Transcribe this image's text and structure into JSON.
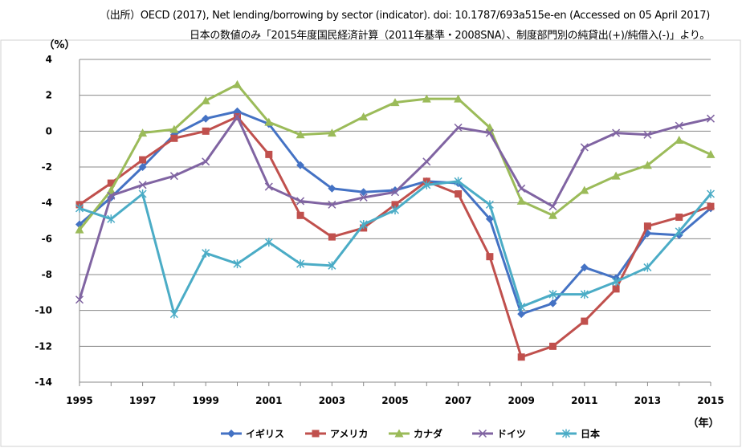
{
  "source_line1": "（出所）OECD (2017), Net lending/borrowing by sector (indicator). doi: 10.1787/693a515e-en (Accessed on 05 April 2017)",
  "source_line2": "日本の数値のみ「2015年度国民経済計算（2011年基準・2008SNA）、制度部門別の純貸出(+)/純借入(-)」より。",
  "chart_data": {
    "type": "line",
    "ylabel": "（%）",
    "xlabel": "（年）",
    "ylim": [
      -14,
      4
    ],
    "yticks": [
      4,
      2,
      0,
      -2,
      -4,
      -6,
      -8,
      -10,
      -12,
      -14
    ],
    "xlim": [
      1995,
      2015
    ],
    "xticks": [
      1995,
      1997,
      1999,
      2001,
      2003,
      2005,
      2007,
      2009,
      2011,
      2013,
      2015
    ],
    "grid": true,
    "legend_position": "bottom",
    "x": [
      1995,
      1996,
      1997,
      1998,
      1999,
      2000,
      2001,
      2002,
      2003,
      2004,
      2005,
      2006,
      2007,
      2008,
      2009,
      2010,
      2011,
      2012,
      2013,
      2014,
      2015
    ],
    "series": [
      {
        "name": "イギリス",
        "color": "#4472c4",
        "marker": "diamond",
        "values": [
          -5.2,
          -3.7,
          -2.0,
          -0.2,
          0.7,
          1.1,
          0.4,
          -1.9,
          -3.2,
          -3.4,
          -3.3,
          -2.8,
          -2.9,
          -4.9,
          -10.2,
          -9.6,
          -7.6,
          -8.2,
          -5.7,
          -5.8,
          -4.3
        ]
      },
      {
        "name": "アメリカ",
        "color": "#c0504d",
        "marker": "square",
        "values": [
          -4.1,
          -2.9,
          -1.6,
          -0.4,
          0.0,
          0.8,
          -1.3,
          -4.7,
          -5.9,
          -5.4,
          -4.1,
          -2.8,
          -3.5,
          -7.0,
          -12.6,
          -12.0,
          -10.6,
          -8.8,
          -5.3,
          -4.8,
          -4.2
        ]
      },
      {
        "name": "カナダ",
        "color": "#9bbb59",
        "marker": "triangle",
        "values": [
          -5.5,
          -3.3,
          -0.1,
          0.1,
          1.7,
          2.6,
          0.5,
          -0.2,
          -0.1,
          0.8,
          1.6,
          1.8,
          1.8,
          0.2,
          -3.9,
          -4.7,
          -3.3,
          -2.5,
          -1.9,
          -0.5,
          -1.3
        ]
      },
      {
        "name": "ドイツ",
        "color": "#8064a2",
        "marker": "x",
        "values": [
          -9.4,
          -3.6,
          -3.0,
          -2.5,
          -1.7,
          0.8,
          -3.1,
          -3.9,
          -4.1,
          -3.7,
          -3.4,
          -1.7,
          0.2,
          -0.1,
          -3.2,
          -4.2,
          -0.9,
          -0.1,
          -0.2,
          0.3,
          0.7
        ]
      },
      {
        "name": "日本",
        "color": "#4bacc6",
        "marker": "asterisk",
        "values": [
          -4.3,
          -4.9,
          -3.5,
          -10.2,
          -6.8,
          -7.4,
          -6.2,
          -7.4,
          -7.5,
          -5.2,
          -4.4,
          -3.0,
          -2.8,
          -4.1,
          -9.8,
          -9.1,
          -9.1,
          -8.4,
          -7.6,
          -5.6,
          -3.5
        ]
      }
    ]
  }
}
